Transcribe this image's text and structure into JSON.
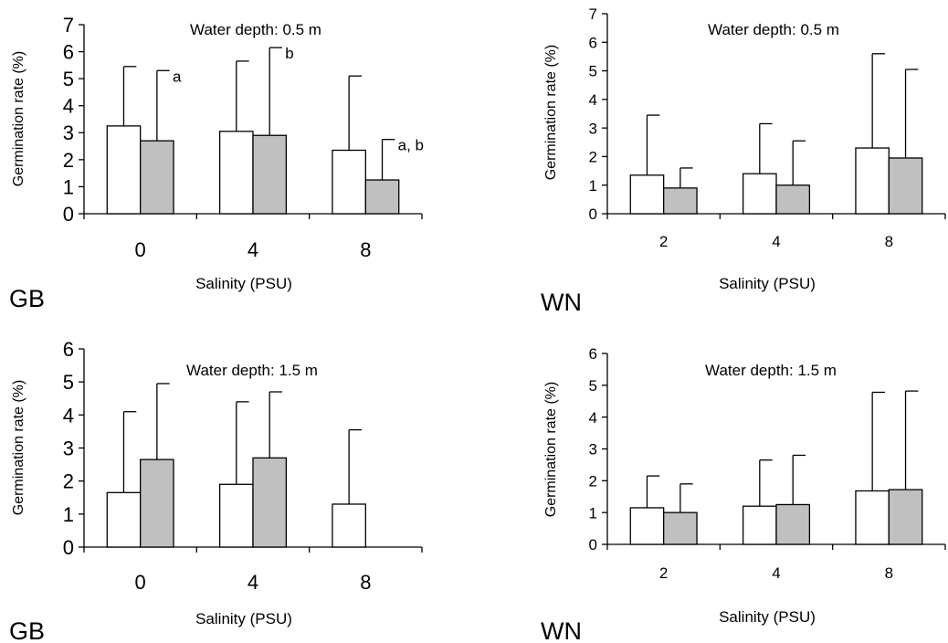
{
  "chart_data": [
    {
      "type": "bar",
      "panel_label": "GB",
      "title": "Water depth: 0.5 m",
      "xlabel": "Salinity (PSU)",
      "ylabel": "Germination rate (%)",
      "ylim": [
        0,
        7
      ],
      "yticks": [
        "0",
        "1",
        "2",
        "3",
        "4",
        "5",
        "6",
        "7"
      ],
      "categories": [
        "0",
        "4",
        "8"
      ],
      "series": [
        {
          "color": "#ffffff",
          "values": [
            3.25,
            3.05,
            2.35
          ],
          "errors": [
            2.2,
            2.6,
            2.75
          ]
        },
        {
          "color": "#c0c0c0",
          "values": [
            2.7,
            2.9,
            1.25
          ],
          "errors": [
            2.6,
            3.25,
            1.5
          ]
        }
      ],
      "annotations": [
        {
          "category": 0,
          "series": 1,
          "text": "a"
        },
        {
          "category": 1,
          "series": 1,
          "text": "b"
        },
        {
          "category": 2,
          "series": 1,
          "text": "a, b"
        }
      ]
    },
    {
      "type": "bar",
      "panel_label": "WN",
      "title": "Water depth: 0.5 m",
      "xlabel": "Salinity (PSU)",
      "ylabel": "Germination rate (%)",
      "ylim": [
        0,
        7
      ],
      "yticks": [
        "0",
        "1",
        "2",
        "3",
        "4",
        "5",
        "6",
        "7"
      ],
      "categories": [
        "2",
        "4",
        "8"
      ],
      "series": [
        {
          "color": "#ffffff",
          "values": [
            1.35,
            1.4,
            2.3
          ],
          "errors": [
            2.1,
            1.75,
            3.3
          ]
        },
        {
          "color": "#c0c0c0",
          "values": [
            0.9,
            1.0,
            1.95
          ],
          "errors": [
            0.7,
            1.55,
            3.1
          ]
        }
      ],
      "annotations": []
    },
    {
      "type": "bar",
      "panel_label": "GB",
      "title": "Water depth: 1.5 m",
      "xlabel": "Salinity (PSU)",
      "ylabel": "Germination rate (%)",
      "ylim": [
        0,
        6
      ],
      "yticks": [
        "0",
        "1",
        "2",
        "3",
        "4",
        "5",
        "6"
      ],
      "categories": [
        "0",
        "4",
        "8"
      ],
      "series": [
        {
          "color": "#ffffff",
          "values": [
            1.65,
            1.9,
            1.3
          ],
          "errors": [
            2.45,
            2.5,
            2.25
          ]
        },
        {
          "color": "#c0c0c0",
          "values": [
            2.65,
            2.7,
            null
          ],
          "errors": [
            2.3,
            2.0,
            null
          ]
        }
      ],
      "annotations": []
    },
    {
      "type": "bar",
      "panel_label": "WN",
      "title": "Water depth: 1.5 m",
      "xlabel": "Salinity (PSU)",
      "ylabel": "Germination rate (%)",
      "ylim": [
        0,
        6
      ],
      "yticks": [
        "0",
        "1",
        "2",
        "3",
        "4",
        "5",
        "6"
      ],
      "categories": [
        "2",
        "4",
        "8"
      ],
      "series": [
        {
          "color": "#ffffff",
          "values": [
            1.15,
            1.2,
            1.68
          ],
          "errors": [
            1.0,
            1.45,
            3.1
          ]
        },
        {
          "color": "#c0c0c0",
          "values": [
            1.0,
            1.25,
            1.72
          ],
          "errors": [
            0.9,
            1.55,
            3.1
          ]
        }
      ],
      "annotations": []
    }
  ]
}
